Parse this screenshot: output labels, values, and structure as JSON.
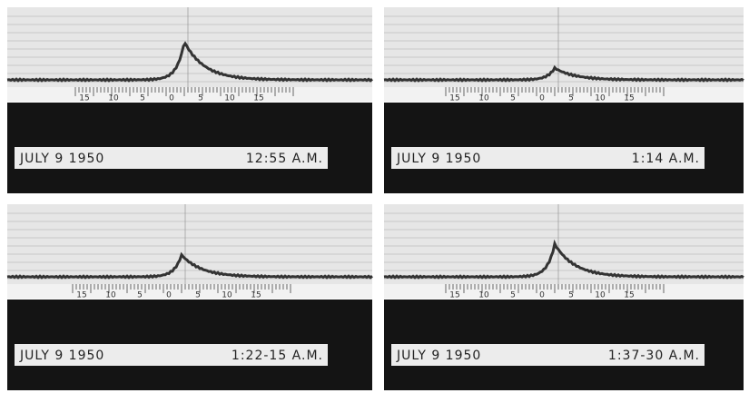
{
  "scale_labels": [
    "15",
    "10",
    "5",
    "0",
    "5",
    "10",
    "15"
  ],
  "panels": [
    {
      "date": "JULY 9 1950",
      "time": "12:55 A.M."
    },
    {
      "date": "JULY 9 1950",
      "time": "1:14 A.M."
    },
    {
      "date": "JULY 9 1950",
      "time": "1:22-15 A.M."
    },
    {
      "date": "JULY 9 1950",
      "time": "1:37-30 A.M."
    }
  ]
}
